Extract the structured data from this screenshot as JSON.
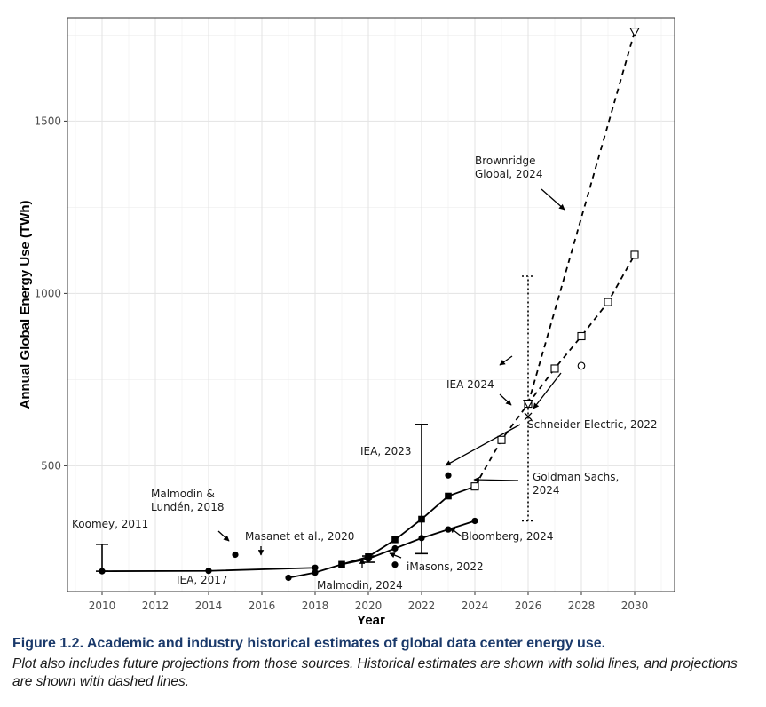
{
  "chart_data": {
    "type": "line",
    "xlabel": "Year",
    "ylabel": "Annual Global Energy Use (TWh)",
    "xlim": [
      2008.7,
      2031.5
    ],
    "ylim": [
      135,
      1800
    ],
    "x_ticks": [
      2010,
      2012,
      2014,
      2016,
      2018,
      2020,
      2022,
      2024,
      2026,
      2028,
      2030
    ],
    "y_ticks": [
      500,
      1000,
      1500
    ],
    "grid": true,
    "legend": "none",
    "series": [
      {
        "marker": "circle",
        "dashed": false,
        "x": [
          2010,
          2014,
          2018
        ],
        "y": [
          194,
          195,
          204
        ]
      },
      {
        "marker": "circle",
        "dashed": false,
        "x": [
          2017,
          2018,
          2019,
          2020,
          2021,
          2022,
          2023,
          2024
        ],
        "y": [
          175,
          190,
          214,
          230,
          260,
          290,
          315,
          340
        ]
      },
      {
        "marker": "square",
        "dashed": false,
        "x": [
          2019,
          2020,
          2021,
          2022,
          2023,
          2024
        ],
        "y": [
          214,
          236,
          285,
          345,
          412,
          440
        ]
      },
      {
        "marker": "circle",
        "dashed": false,
        "x": [
          2023
        ],
        "y": [
          472
        ]
      },
      {
        "marker": "circle",
        "dashed": false,
        "x": [
          2021
        ],
        "y": [
          213
        ]
      },
      {
        "marker": "circle",
        "dashed": false,
        "x": [
          2015
        ],
        "y": [
          242
        ]
      },
      {
        "marker": "open-square",
        "dashed": true,
        "x": [
          2024,
          2025,
          2026,
          2027,
          2028,
          2029,
          2030
        ],
        "y": [
          440,
          575,
          680,
          782,
          876,
          975,
          1112
        ]
      },
      {
        "marker": "open-triangle",
        "dashed": true,
        "x": [
          2026,
          2030
        ],
        "y": [
          680,
          1760
        ]
      },
      {
        "marker": "open-circle",
        "dashed": false,
        "x": [
          2028
        ],
        "y": [
          790
        ]
      },
      {
        "marker": "cross",
        "dashed": false,
        "x": [
          2026
        ],
        "y": [
          643
        ]
      }
    ],
    "error_bars": [
      {
        "x": 2010,
        "low": 194,
        "high": 272,
        "style": "solid"
      },
      {
        "x": 2020,
        "low": 220,
        "high": 238,
        "style": "solid"
      },
      {
        "x": 2022,
        "low": 245,
        "high": 620,
        "style": "solid"
      },
      {
        "x": 2026,
        "low": 340,
        "high": 1050,
        "style": "dotted"
      }
    ],
    "annotations": [
      {
        "lines": [
          "Koomey, 2011"
        ]
      },
      {
        "lines": [
          "IEA, 2017"
        ]
      },
      {
        "lines": [
          "Malmodin &",
          "Lundén, 2018"
        ]
      },
      {
        "lines": [
          "Masanet et al., 2020"
        ]
      },
      {
        "lines": [
          "Malmodin, 2024"
        ]
      },
      {
        "lines": [
          "iMasons, 2022"
        ]
      },
      {
        "lines": [
          "IEA, 2023"
        ]
      },
      {
        "lines": [
          "Bloomberg, 2024"
        ]
      },
      {
        "lines": [
          "Goldman Sachs,",
          "2024"
        ]
      },
      {
        "lines": [
          "Schneider Electric, 2022"
        ]
      },
      {
        "lines": [
          "IEA 2024"
        ]
      },
      {
        "lines": [
          "Brownridge",
          "Global, 2024"
        ]
      }
    ]
  },
  "caption": {
    "title": "Figure 1.2.  Academic and industry historical estimates of global data center energy use.",
    "text": "Plot also includes future projections from those sources. Historical estimates are shown with solid lines, and projections are shown with dashed lines."
  }
}
